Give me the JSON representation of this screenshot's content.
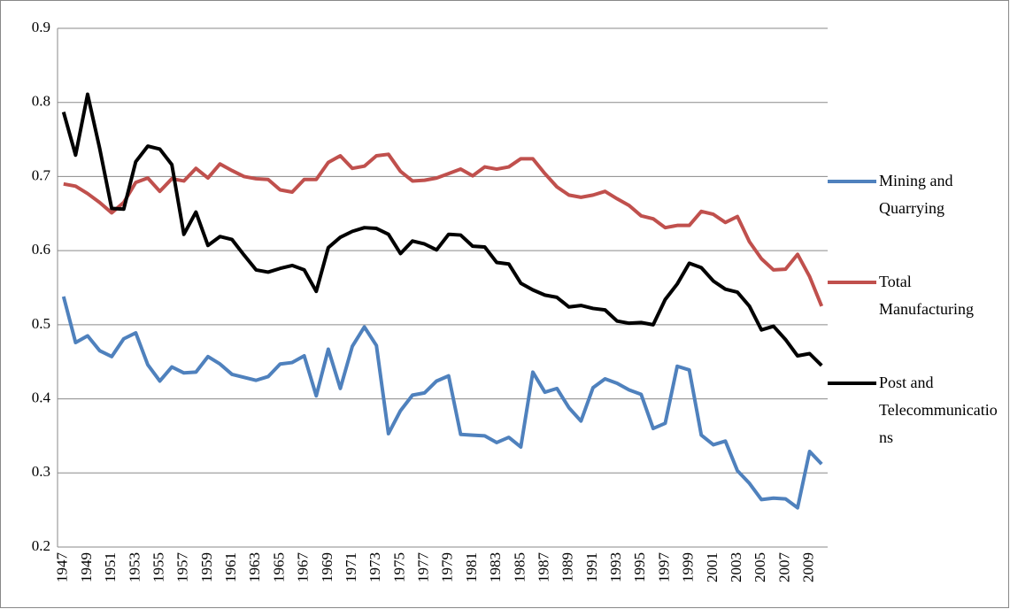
{
  "chart_data": {
    "type": "line",
    "categories": [
      "1947",
      null,
      "1949",
      null,
      "1951",
      null,
      "1953",
      null,
      "1955",
      null,
      "1957",
      null,
      "1959",
      null,
      "1961",
      null,
      "1963",
      null,
      "1965",
      null,
      "1967",
      null,
      "1969",
      null,
      "1971",
      null,
      "1973",
      null,
      "1975",
      null,
      "1977",
      null,
      "1979",
      null,
      "1981",
      null,
      "1983",
      null,
      "1985",
      null,
      "1987",
      null,
      "1989",
      null,
      "1991",
      null,
      "1993",
      null,
      "1995",
      null,
      "1997",
      null,
      "1999",
      null,
      "2001",
      null,
      "2003",
      null,
      "2005",
      null,
      "2007",
      null,
      "2009",
      null
    ],
    "series": [
      {
        "name": "Mining and Quarrying",
        "color": "#4f81bd",
        "values": [
          0.538,
          0.476,
          0.485,
          0.465,
          0.457,
          0.481,
          0.489,
          0.446,
          0.424,
          0.443,
          0.435,
          0.436,
          0.457,
          0.447,
          0.433,
          0.429,
          0.425,
          0.43,
          0.447,
          0.449,
          0.458,
          0.404,
          0.467,
          0.414,
          0.471,
          0.497,
          0.472,
          0.353,
          0.384,
          0.405,
          0.408,
          0.424,
          0.431,
          0.352,
          0.351,
          0.35,
          0.341,
          0.348,
          0.335,
          0.436,
          0.409,
          0.414,
          0.388,
          0.37,
          0.415,
          0.427,
          0.421,
          0.412,
          0.406,
          0.36,
          0.367,
          0.444,
          0.439,
          0.351,
          0.338,
          0.343,
          0.303,
          0.286,
          0.264,
          0.266,
          0.265,
          0.253,
          0.329,
          0.312
        ]
      },
      {
        "name": "Total Manufacturing",
        "color": "#c0504d",
        "values": [
          0.69,
          0.687,
          0.677,
          0.665,
          0.651,
          0.665,
          0.692,
          0.698,
          0.68,
          0.697,
          0.694,
          0.711,
          0.698,
          0.717,
          0.708,
          0.7,
          0.697,
          0.696,
          0.682,
          0.679,
          0.696,
          0.696,
          0.719,
          0.728,
          0.711,
          0.714,
          0.728,
          0.73,
          0.707,
          0.694,
          0.695,
          0.698,
          0.704,
          0.71,
          0.701,
          0.713,
          0.71,
          0.713,
          0.724,
          0.724,
          0.704,
          0.686,
          0.675,
          0.672,
          0.675,
          0.68,
          0.67,
          0.661,
          0.647,
          0.643,
          0.631,
          0.634,
          0.634,
          0.653,
          0.649,
          0.638,
          0.646,
          0.612,
          0.589,
          0.574,
          0.575,
          0.595,
          0.565,
          0.525
        ]
      },
      {
        "name": "Post and Telecommunications",
        "color": "#000000",
        "values": [
          0.787,
          0.729,
          0.811,
          0.738,
          0.657,
          0.656,
          0.72,
          0.741,
          0.737,
          0.716,
          0.622,
          0.652,
          0.607,
          0.619,
          0.615,
          0.594,
          0.574,
          0.571,
          0.576,
          0.58,
          0.574,
          0.545,
          0.604,
          0.618,
          0.626,
          0.631,
          0.63,
          0.622,
          0.596,
          0.613,
          0.609,
          0.601,
          0.622,
          0.621,
          0.606,
          0.605,
          0.584,
          0.582,
          0.556,
          0.547,
          0.54,
          0.537,
          0.524,
          0.526,
          0.522,
          0.52,
          0.505,
          0.502,
          0.503,
          0.5,
          0.534,
          0.555,
          0.583,
          0.577,
          0.559,
          0.548,
          0.544,
          0.525,
          0.493,
          0.498,
          0.48,
          0.458,
          0.461,
          0.445
        ]
      }
    ],
    "ylim": [
      0.2,
      0.9
    ],
    "yticks": [
      0.2,
      0.3,
      0.4,
      0.5,
      0.6,
      0.7,
      0.8,
      0.9
    ],
    "grid": true,
    "legend": "right"
  }
}
